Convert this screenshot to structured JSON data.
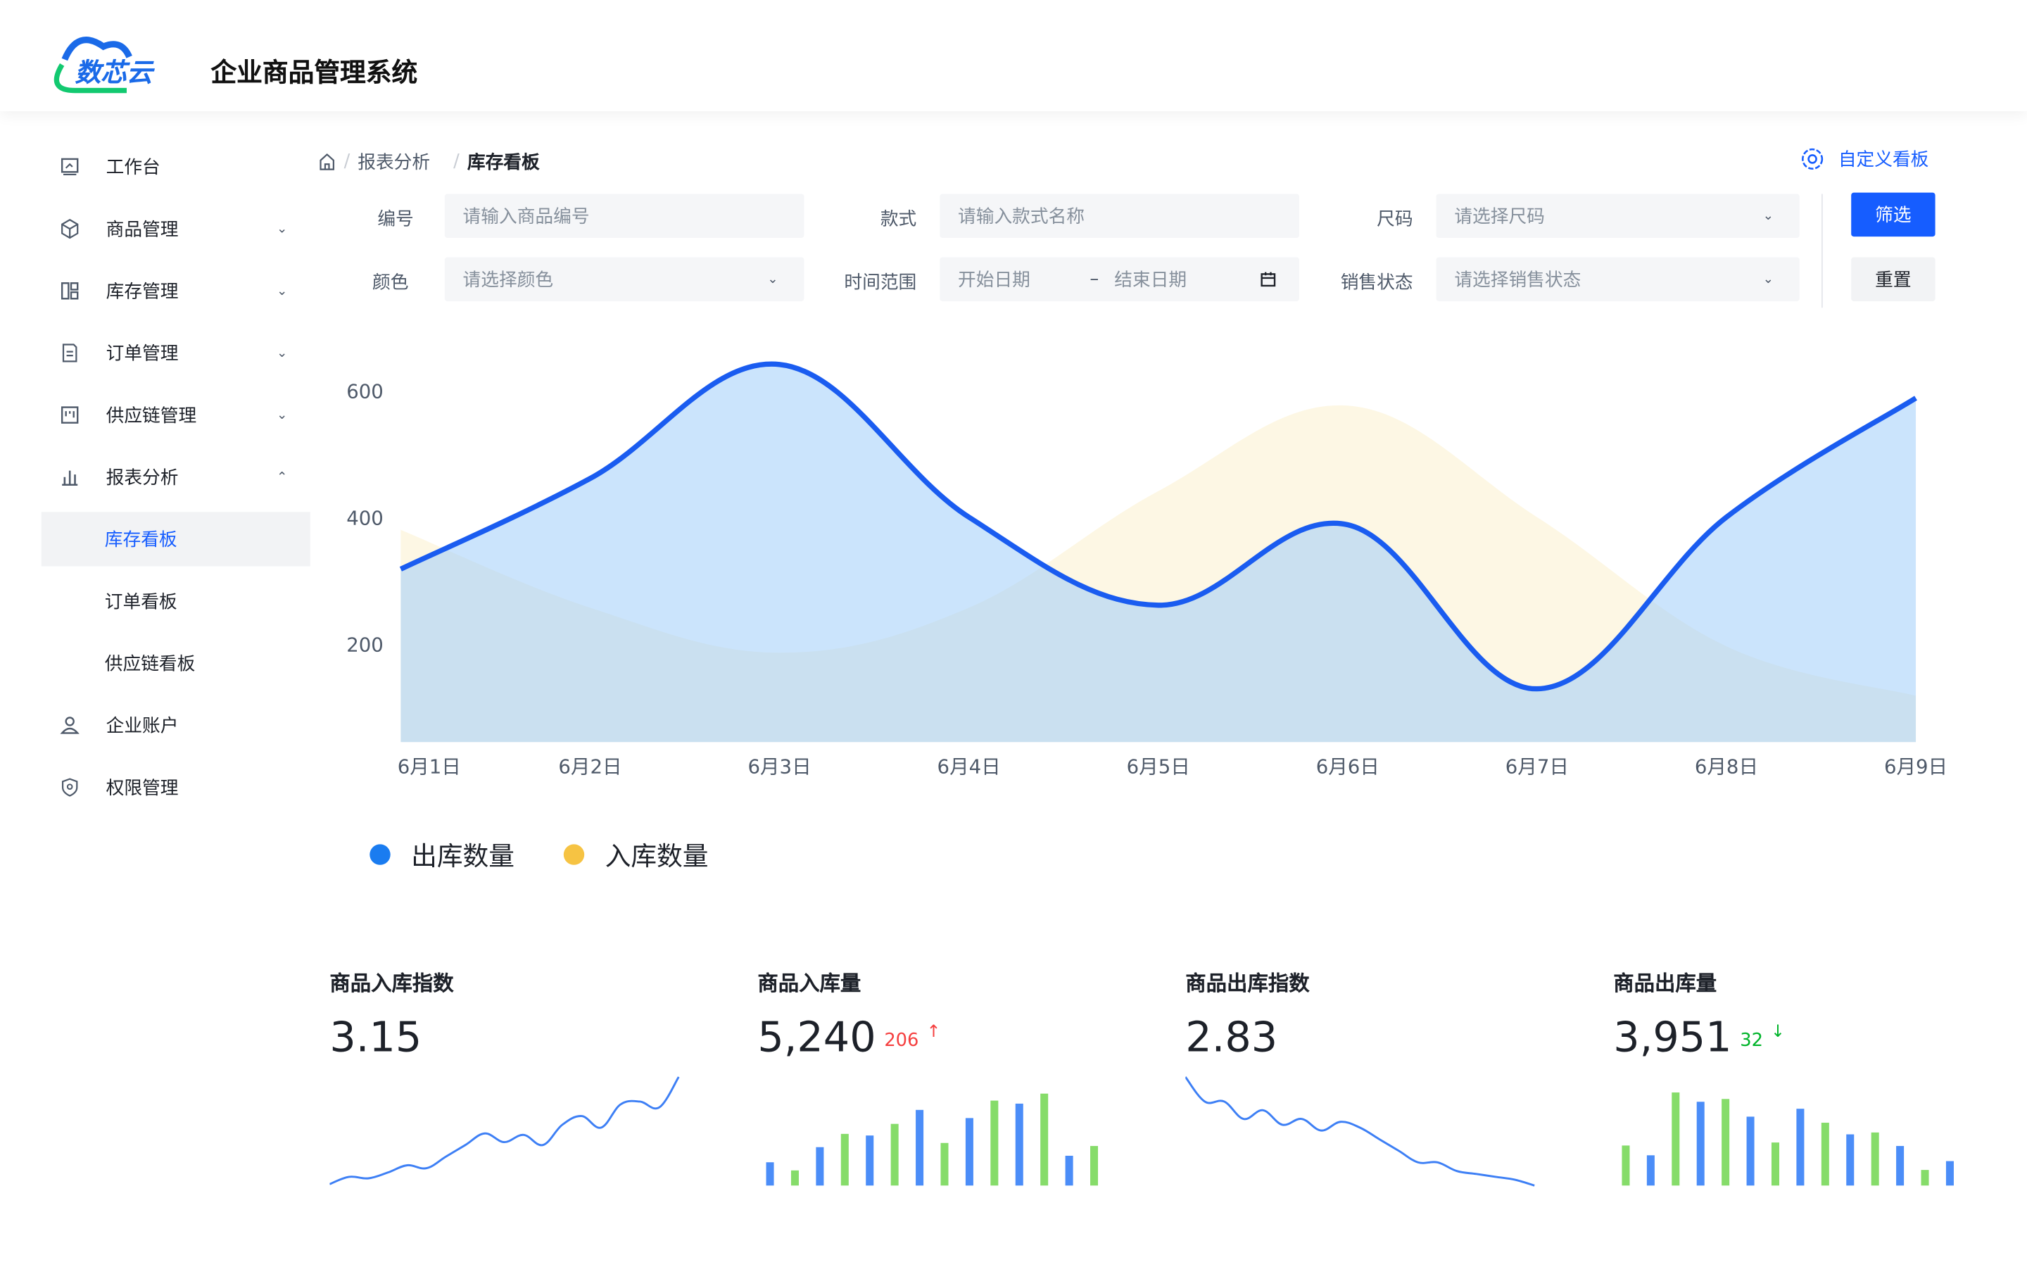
{
  "header": {
    "logo_text": "数芯云",
    "title": "企业商品管理系统"
  },
  "sidebar": {
    "items": [
      {
        "label": "工作台",
        "icon": "dashboard-icon"
      },
      {
        "label": "商品管理",
        "icon": "box-icon",
        "chevron": "down"
      },
      {
        "label": "库存管理",
        "icon": "layout-icon",
        "chevron": "down"
      },
      {
        "label": "订单管理",
        "icon": "file-icon",
        "chevron": "down"
      },
      {
        "label": "供应链管理",
        "icon": "kanban-icon",
        "chevron": "down"
      },
      {
        "label": "报表分析",
        "icon": "bar-chart-icon",
        "chevron": "up"
      },
      {
        "label": "库存看板",
        "sub": true,
        "active": true
      },
      {
        "label": "订单看板",
        "sub": true
      },
      {
        "label": "供应链看板",
        "sub": true
      },
      {
        "label": "企业账户",
        "icon": "user-icon"
      },
      {
        "label": "权限管理",
        "icon": "shield-icon"
      }
    ]
  },
  "breadcrumb": {
    "parent": "报表分析",
    "current": "库存看板",
    "separator": "/"
  },
  "customize": {
    "label": "自定义看板"
  },
  "filters": {
    "code": {
      "label": "编号",
      "placeholder": "请输入商品编号"
    },
    "style": {
      "label": "款式",
      "placeholder": "请输入款式名称"
    },
    "size": {
      "label": "尺码",
      "placeholder": "请选择尺码"
    },
    "color": {
      "label": "颜色",
      "placeholder": "请选择颜色"
    },
    "time": {
      "label": "时间范围",
      "start": "开始日期",
      "sep": "–",
      "end": "结束日期"
    },
    "status": {
      "label": "销售状态",
      "placeholder": "请选择销售状态"
    },
    "filter_btn": "筛选",
    "reset_btn": "重置"
  },
  "colors": {
    "primary": "#165dff",
    "outbound": "#1a5cf0",
    "inbound": "#f6c343",
    "up": "#f53f3f",
    "down": "#00b42a",
    "bar_blue": "#4b8df8",
    "bar_green": "#86dc6a"
  },
  "chart_data": {
    "type": "area",
    "categories": [
      "6月1日",
      "6月2日",
      "6月3日",
      "6月4日",
      "6月5日",
      "6月6日",
      "6月7日",
      "6月8日",
      "6月9日"
    ],
    "yticks": [
      200,
      400,
      600
    ],
    "ylim": [
      45,
      665
    ],
    "grid": false,
    "legend_position": "bottom-left",
    "series": [
      {
        "name": "出库数量",
        "color": "#1a5cf0",
        "values": [
          318,
          461,
          641,
          400,
          261,
          388,
          129,
          400,
          588
        ]
      },
      {
        "name": "入库数量",
        "color": "#f6c343",
        "values": [
          380,
          257,
          186,
          257,
          441,
          576,
          400,
          196,
          118
        ]
      }
    ]
  },
  "cards": [
    {
      "title": "商品入库指数",
      "value": "3.15",
      "spark": {
        "type": "line",
        "values": [
          1,
          6,
          5,
          9,
          14,
          12,
          20,
          28,
          36,
          30,
          35,
          28,
          42,
          48,
          40,
          56,
          58,
          54,
          75
        ]
      }
    },
    {
      "title": "商品入库量",
      "value": "5,240",
      "delta": "206",
      "direction": "up",
      "spark": {
        "type": "bar",
        "values": [
          100,
          65,
          165,
          222,
          215,
          265,
          325,
          183,
          290,
          365,
          352,
          395,
          128,
          170
        ]
      }
    },
    {
      "title": "商品出库指数",
      "value": "2.83",
      "spark": {
        "type": "line",
        "values": [
          75,
          58,
          58,
          46,
          52,
          42,
          46,
          38,
          44,
          40,
          32,
          24,
          16,
          16,
          10,
          8,
          6,
          4,
          0
        ]
      }
    },
    {
      "title": "商品出库量",
      "value": "3,951",
      "delta": "32",
      "direction": "down",
      "spark": {
        "type": "bar",
        "values": [
          172,
          130,
          400,
          360,
          372,
          296,
          185,
          330,
          270,
          220,
          228,
          170,
          67,
          105
        ]
      }
    }
  ]
}
